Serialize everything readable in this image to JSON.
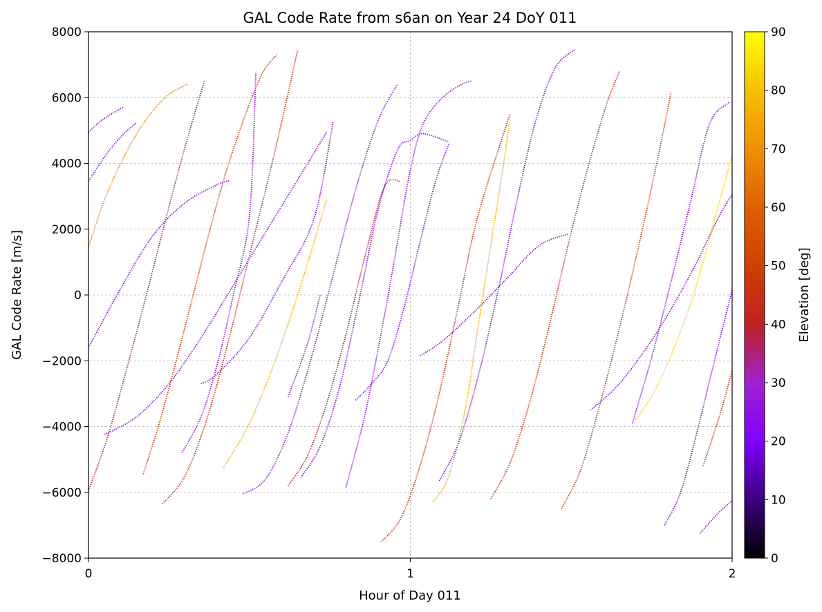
{
  "chart_data": {
    "type": "scatter",
    "title": "GAL Code Rate from s6an on Year 24 DoY 011",
    "xlabel": "Hour of Day 011",
    "ylabel": "GAL Code Rate [m/s]",
    "xlim": [
      0,
      2
    ],
    "ylim": [
      -8000,
      8000
    ],
    "xticks": [
      {
        "value": 0,
        "label": "0"
      },
      {
        "value": 1,
        "label": "1"
      },
      {
        "value": 2,
        "label": "2"
      }
    ],
    "yticks": [
      {
        "value": -8000,
        "label": "−8000"
      },
      {
        "value": -6000,
        "label": "−6000"
      },
      {
        "value": -4000,
        "label": "−4000"
      },
      {
        "value": -2000,
        "label": "−2000"
      },
      {
        "value": 0,
        "label": "0"
      },
      {
        "value": 2000,
        "label": "2000"
      },
      {
        "value": 4000,
        "label": "4000"
      },
      {
        "value": 6000,
        "label": "6000"
      },
      {
        "value": 8000,
        "label": "8000"
      }
    ],
    "grid": true,
    "colorbar": {
      "label": "Elevation [deg]",
      "range": [
        0,
        90
      ],
      "ticks": [
        {
          "value": 0,
          "label": "0"
        },
        {
          "value": 10,
          "label": "10"
        },
        {
          "value": 20,
          "label": "20"
        },
        {
          "value": 30,
          "label": "30"
        },
        {
          "value": 40,
          "label": "40"
        },
        {
          "value": 50,
          "label": "50"
        },
        {
          "value": 60,
          "label": "60"
        },
        {
          "value": 70,
          "label": "70"
        },
        {
          "value": 80,
          "label": "80"
        },
        {
          "value": 90,
          "label": "90"
        }
      ],
      "colormap": [
        "#000000",
        "#3c0080",
        "#8000ff",
        "#a020d0",
        "#c02020",
        "#d04000",
        "#e06000",
        "#f09000",
        "#f8c000",
        "#ffff00"
      ]
    },
    "series": [
      {
        "x": [
          0.0,
          0.04,
          0.08,
          0.11
        ],
        "y": [
          4950,
          5300,
          5550,
          5720
        ],
        "elev": 22
      },
      {
        "x": [
          0.0,
          0.05,
          0.1,
          0.15
        ],
        "y": [
          3450,
          4200,
          4800,
          5250
        ],
        "elev": 22
      },
      {
        "x": [
          0.0,
          0.05,
          0.1,
          0.15,
          0.2,
          0.25,
          0.31
        ],
        "y": [
          1450,
          2900,
          4000,
          4900,
          5600,
          6100,
          6420
        ],
        "elev": 68
      },
      {
        "x": [
          0.0,
          0.1,
          0.2,
          0.3,
          0.4,
          0.44
        ],
        "y": [
          -1600,
          200,
          1800,
          2800,
          3350,
          3480
        ],
        "elev": 22
      },
      {
        "x": [
          0.0,
          0.06,
          0.12,
          0.18,
          0.24,
          0.3,
          0.36
        ],
        "y": [
          -5950,
          -4300,
          -2200,
          0,
          2300,
          4500,
          6500
        ],
        "elev": 40
      },
      {
        "x": [
          0.05,
          0.15,
          0.25,
          0.35,
          0.45,
          0.55,
          0.65,
          0.74
        ],
        "y": [
          -4250,
          -3700,
          -2700,
          -1300,
          300,
          1900,
          3500,
          4950
        ],
        "elev": 22
      },
      {
        "x": [
          0.17,
          0.22,
          0.27,
          0.32,
          0.37,
          0.42,
          0.47,
          0.52,
          0.55,
          0.585
        ],
        "y": [
          -5450,
          -3900,
          -2100,
          -200,
          1700,
          3500,
          5000,
          6300,
          6900,
          7300
        ],
        "elev": 48
      },
      {
        "x": [
          0.23,
          0.3,
          0.37,
          0.44,
          0.51,
          0.58,
          0.65
        ],
        "y": [
          -6350,
          -5500,
          -3700,
          -1200,
          1600,
          4400,
          7450
        ],
        "elev": 45
      },
      {
        "x": [
          0.29,
          0.35,
          0.4,
          0.45,
          0.5,
          0.52
        ],
        "y": [
          -4800,
          -3700,
          -2100,
          0,
          2400,
          6750
        ],
        "elev": 25
      },
      {
        "x": [
          0.35,
          0.4,
          0.5,
          0.6,
          0.7,
          0.76
        ],
        "y": [
          -2700,
          -2400,
          -1300,
          400,
          2300,
          5250
        ],
        "elev": 22
      },
      {
        "x": [
          0.42,
          0.5,
          0.58,
          0.66,
          0.74
        ],
        "y": [
          -5250,
          -3900,
          -2000,
          300,
          2900
        ],
        "elev": 75
      },
      {
        "x": [
          0.48,
          0.55,
          0.62,
          0.69,
          0.76,
          0.83,
          0.9,
          0.96
        ],
        "y": [
          -6050,
          -5600,
          -4200,
          -2000,
          600,
          3200,
          5300,
          6400
        ],
        "elev": 25
      },
      {
        "x": [
          0.62,
          0.68,
          0.72
        ],
        "y": [
          -3100,
          -1500,
          0
        ],
        "elev": 25
      },
      {
        "x": [
          0.62,
          0.68,
          0.74,
          0.8,
          0.86,
          0.92,
          0.97
        ],
        "y": [
          -5800,
          -4900,
          -3300,
          -1200,
          1200,
          3300,
          3450
        ],
        "elev": 40
      },
      {
        "x": [
          0.8,
          0.86,
          0.92,
          0.96,
          1.0,
          1.04,
          1.1,
          1.16,
          1.19
        ],
        "y": [
          -5850,
          -3600,
          -600,
          1600,
          3800,
          5200,
          6000,
          6400,
          6500
        ],
        "elev": 24
      },
      {
        "x": [
          0.66,
          0.72,
          0.78,
          0.84,
          0.9,
          0.96,
          1.0,
          1.04,
          1.12
        ],
        "y": [
          -5550,
          -4600,
          -2800,
          -200,
          2600,
          4400,
          4700,
          4900,
          4650
        ],
        "elev": 22
      },
      {
        "x": [
          0.83,
          0.88,
          0.93,
          0.98,
          1.03,
          1.08,
          1.12
        ],
        "y": [
          -3200,
          -2700,
          -2000,
          -400,
          1600,
          3500,
          4600
        ],
        "elev": 22
      },
      {
        "x": [
          0.91,
          0.97,
          1.03,
          1.09,
          1.15,
          1.21,
          1.31
        ],
        "y": [
          -7500,
          -6800,
          -5200,
          -3000,
          -300,
          2400,
          5500
        ],
        "elev": 45
      },
      {
        "x": [
          1.03,
          1.1,
          1.2,
          1.3,
          1.4,
          1.49
        ],
        "y": [
          -1850,
          -1400,
          -500,
          500,
          1500,
          1850
        ],
        "elev": 22
      },
      {
        "x": [
          1.07,
          1.12,
          1.17,
          1.21,
          1.25,
          1.29,
          1.31
        ],
        "y": [
          -6300,
          -5500,
          -3500,
          -1000,
          1500,
          4000,
          5500
        ],
        "elev": 75
      },
      {
        "x": [
          1.09,
          1.15,
          1.21,
          1.27,
          1.33,
          1.39,
          1.45,
          1.51
        ],
        "y": [
          -5650,
          -4500,
          -2500,
          0,
          2800,
          5300,
          6900,
          7450
        ],
        "elev": 22
      },
      {
        "x": [
          1.25,
          1.31,
          1.37,
          1.43,
          1.49,
          1.55,
          1.61,
          1.65
        ],
        "y": [
          -6200,
          -5100,
          -3300,
          -1000,
          1500,
          3800,
          5800,
          6800
        ],
        "elev": 45
      },
      {
        "x": [
          1.47,
          1.53,
          1.59,
          1.65,
          1.71,
          1.77,
          1.81
        ],
        "y": [
          -6500,
          -5300,
          -3300,
          -1000,
          1500,
          4200,
          6150
        ],
        "elev": 48
      },
      {
        "x": [
          1.56,
          1.64,
          1.72,
          1.8,
          1.88,
          1.96,
          2.0
        ],
        "y": [
          -3500,
          -2800,
          -1800,
          -600,
          800,
          2400,
          3050
        ],
        "elev": 22
      },
      {
        "x": [
          1.69,
          1.75,
          1.81,
          1.87,
          1.93,
          1.99
        ],
        "y": [
          -3900,
          -1900,
          400,
          2800,
          5200,
          5850
        ],
        "elev": 22
      },
      {
        "x": [
          1.7,
          1.76,
          1.82,
          1.88,
          1.94,
          2.0
        ],
        "y": [
          -3800,
          -2900,
          -1600,
          0,
          2100,
          4250
        ],
        "elev": 82
      },
      {
        "x": [
          1.79,
          1.84,
          1.89,
          1.94,
          2.0
        ],
        "y": [
          -7000,
          -6000,
          -4200,
          -2200,
          150
        ],
        "elev": 22
      },
      {
        "x": [
          1.9,
          1.95,
          2.0
        ],
        "y": [
          -7250,
          -6700,
          -6250
        ],
        "elev": 22
      },
      {
        "x": [
          1.91,
          1.96,
          2.0
        ],
        "y": [
          -5200,
          -3700,
          -2300
        ],
        "elev": 45
      }
    ]
  }
}
